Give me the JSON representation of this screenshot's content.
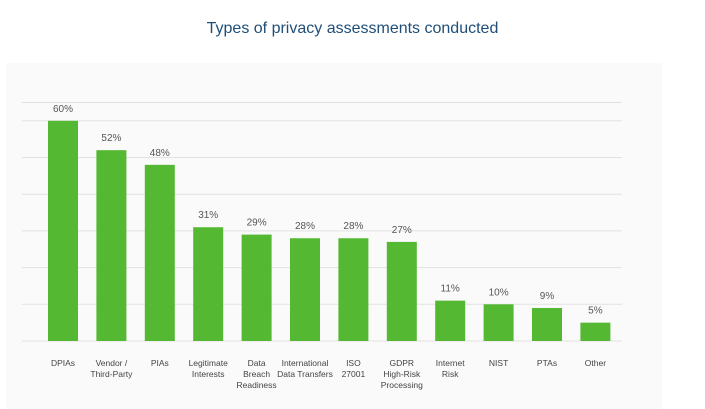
{
  "title": "Types of privacy assessments conducted",
  "chart_data": {
    "type": "bar",
    "title": "Types of privacy assessments conducted",
    "xlabel": "",
    "ylabel": "",
    "ylim": [
      0,
      60
    ],
    "grid": true,
    "legend": "none",
    "bar_color": "#55b832",
    "categories": [
      [
        "DPIAs"
      ],
      [
        "Vendor /",
        "Third-Party"
      ],
      [
        "PIAs"
      ],
      [
        "Legitimate",
        "Interests"
      ],
      [
        "Data",
        "Breach",
        "Readiness"
      ],
      [
        "International",
        "Data Transfers"
      ],
      [
        "ISO",
        "27001"
      ],
      [
        "GDPR",
        "High-Risk",
        "Processing"
      ],
      [
        "Internet",
        "Risk"
      ],
      [
        "NIST"
      ],
      [
        "PTAs"
      ],
      [
        "Other"
      ]
    ],
    "values": [
      60,
      52,
      48,
      31,
      29,
      28,
      28,
      27,
      11,
      10,
      9,
      5
    ],
    "value_labels": [
      "60%",
      "52%",
      "48%",
      "31%",
      "29%",
      "28%",
      "28%",
      "27%",
      "11%",
      "10%",
      "9%",
      "5%"
    ]
  }
}
